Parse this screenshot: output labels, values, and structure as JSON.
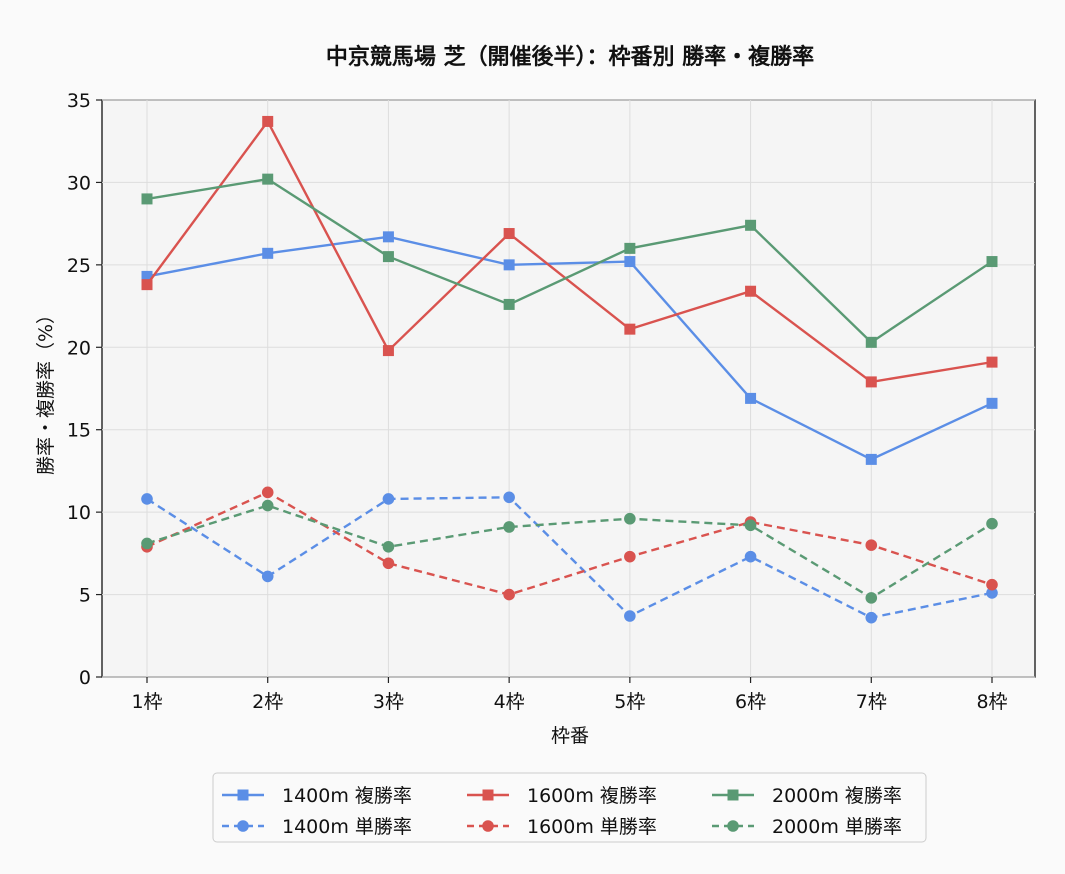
{
  "chart_data": {
    "type": "line",
    "title": "中京競馬場 芝（開催後半）：枠番別 勝率・複勝率",
    "xlabel": "枠番",
    "ylabel": "勝率・複勝率（%）",
    "categories": [
      "1枠",
      "2枠",
      "3枠",
      "4枠",
      "5枠",
      "6枠",
      "7枠",
      "8枠"
    ],
    "ylim": [
      0,
      35
    ],
    "yticks": [
      0,
      5,
      10,
      15,
      20,
      25,
      30,
      35
    ],
    "grid": true,
    "legend_position": "bottom",
    "series": [
      {
        "name": "1400m 複勝率",
        "color": "#5b8ee6",
        "style": "solid",
        "marker": "square",
        "values": [
          24.3,
          25.7,
          26.7,
          25.0,
          25.2,
          16.9,
          13.2,
          16.6
        ]
      },
      {
        "name": "1400m 単勝率",
        "color": "#5b8ee6",
        "style": "dashed",
        "marker": "circle",
        "values": [
          10.8,
          6.1,
          10.8,
          10.9,
          3.7,
          7.3,
          3.6,
          5.1
        ]
      },
      {
        "name": "1600m 複勝率",
        "color": "#d9534f",
        "style": "solid",
        "marker": "square",
        "values": [
          23.8,
          33.7,
          19.8,
          26.9,
          21.1,
          23.4,
          17.9,
          19.1
        ]
      },
      {
        "name": "1600m 単勝率",
        "color": "#d9534f",
        "style": "dashed",
        "marker": "circle",
        "values": [
          7.9,
          11.2,
          6.9,
          5.0,
          7.3,
          9.4,
          8.0,
          5.6
        ]
      },
      {
        "name": "2000m 複勝率",
        "color": "#5a9a74",
        "style": "solid",
        "marker": "square",
        "values": [
          29.0,
          30.2,
          25.5,
          22.6,
          26.0,
          27.4,
          20.3,
          25.2
        ]
      },
      {
        "name": "2000m 単勝率",
        "color": "#5a9a74",
        "style": "dashed",
        "marker": "circle",
        "values": [
          8.1,
          10.4,
          7.9,
          9.1,
          9.6,
          9.2,
          4.8,
          9.3
        ]
      }
    ]
  }
}
